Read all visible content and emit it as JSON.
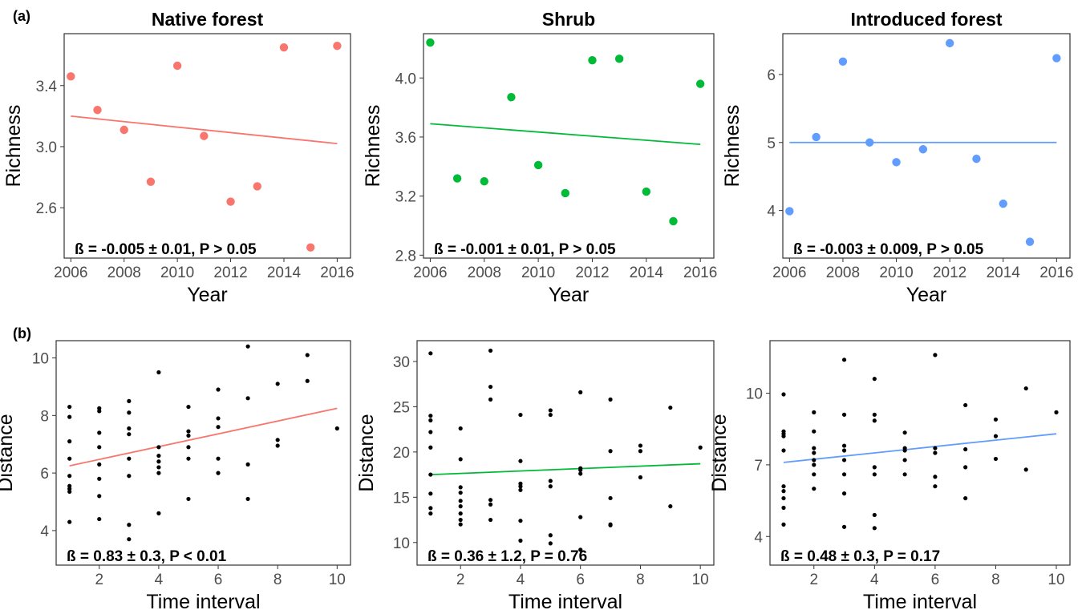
{
  "panel_labels": [
    "(a)",
    "(b)"
  ],
  "column_titles": [
    "Native forest",
    "Shrub",
    "Introduced forest"
  ],
  "chart_data": [
    {
      "type": "scatter",
      "row": "a",
      "title": "Native forest",
      "xlabel": "Year",
      "ylabel": "Richness",
      "xlim": [
        2005.75,
        2016.5
      ],
      "ylim": [
        2.27,
        3.74
      ],
      "xticks": [
        2006,
        2008,
        2010,
        2012,
        2014,
        2016
      ],
      "yticks": [
        2.6,
        3.0,
        3.4
      ],
      "ytick_labels": [
        "2.6",
        "3.0",
        "3.4"
      ],
      "point_color": "#f8766d",
      "point_size": "large",
      "x": [
        2006,
        2007,
        2008,
        2009,
        2010,
        2011,
        2012,
        2013,
        2014,
        2015,
        2016
      ],
      "y": [
        3.46,
        3.24,
        3.11,
        2.77,
        3.53,
        3.07,
        2.64,
        2.74,
        3.65,
        2.34,
        3.66
      ],
      "fit_line": {
        "x": [
          2006,
          2016
        ],
        "y": [
          3.2,
          3.02
        ],
        "color": "#f8766d"
      },
      "annotation": "ß = -0.005 ± 0.01, P > 0.05",
      "grid": false
    },
    {
      "type": "scatter",
      "row": "a",
      "title": "Shrub",
      "xlabel": "Year",
      "ylabel": "Richness",
      "xlim": [
        2005.75,
        2016.5
      ],
      "ylim": [
        2.78,
        4.3
      ],
      "xticks": [
        2006,
        2008,
        2010,
        2012,
        2014,
        2016
      ],
      "yticks": [
        2.8,
        3.2,
        3.6,
        4.0
      ],
      "ytick_labels": [
        "2.8",
        "3.2",
        "3.6",
        "4.0"
      ],
      "point_color": "#00ba38",
      "point_size": "large",
      "x": [
        2006,
        2007,
        2008,
        2009,
        2010,
        2011,
        2012,
        2013,
        2014,
        2015,
        2016
      ],
      "y": [
        4.24,
        3.32,
        3.3,
        3.87,
        3.41,
        3.22,
        4.12,
        4.13,
        3.23,
        3.03,
        3.96
      ],
      "fit_line": {
        "x": [
          2006,
          2016
        ],
        "y": [
          3.69,
          3.55
        ],
        "color": "#00ba38"
      },
      "annotation": "ß = -0.001 ± 0.01, P > 0.05",
      "grid": false
    },
    {
      "type": "scatter",
      "row": "a",
      "title": "Introduced forest",
      "xlabel": "Year",
      "ylabel": "Richness",
      "xlim": [
        2005.75,
        2016.5
      ],
      "ylim": [
        3.3,
        6.6
      ],
      "xticks": [
        2006,
        2008,
        2010,
        2012,
        2014,
        2016
      ],
      "yticks": [
        4,
        5,
        6
      ],
      "ytick_labels": [
        "4",
        "5",
        "6"
      ],
      "point_color": "#619cff",
      "point_size": "large",
      "x": [
        2006,
        2007,
        2008,
        2009,
        2010,
        2011,
        2012,
        2013,
        2014,
        2015,
        2016
      ],
      "y": [
        3.99,
        5.08,
        6.19,
        5.0,
        4.71,
        4.9,
        6.46,
        4.76,
        4.1,
        3.54,
        6.24
      ],
      "fit_line": {
        "x": [
          2006,
          2016
        ],
        "y": [
          5.0,
          5.0
        ],
        "color": "#619cff"
      },
      "annotation": "ß = -0.003 ± 0.009, P > 0.05",
      "grid": false
    },
    {
      "type": "scatter",
      "row": "b",
      "xlabel": "Time interval",
      "ylabel": "Distance",
      "xlim": [
        0.55,
        10.45
      ],
      "ylim": [
        2.8,
        10.6
      ],
      "xticks": [
        2,
        4,
        6,
        8,
        10
      ],
      "yticks": [
        4,
        6,
        8,
        10
      ],
      "ytick_labels": [
        "4",
        "6",
        "8",
        "10"
      ],
      "point_color": "#000000",
      "point_size": "small",
      "x": [
        1,
        1,
        1,
        1,
        1,
        1,
        1,
        1,
        1,
        2,
        2,
        2,
        2,
        2,
        2,
        2,
        2,
        3,
        3,
        3,
        3,
        3,
        3,
        3,
        3,
        4,
        4,
        4,
        4,
        4,
        4,
        4,
        5,
        5,
        5,
        5,
        5,
        5,
        6,
        6,
        6,
        6,
        6,
        7,
        7,
        7,
        7,
        8,
        8,
        8,
        9,
        9,
        10
      ],
      "y": [
        8.3,
        7.95,
        7.1,
        6.5,
        5.9,
        5.55,
        5.45,
        5.35,
        4.3,
        8.25,
        8.15,
        7.4,
        6.9,
        6.3,
        5.8,
        5.2,
        4.4,
        8.5,
        8.1,
        7.55,
        7.35,
        6.5,
        5.9,
        4.2,
        3.7,
        9.5,
        6.9,
        6.6,
        6.4,
        6.2,
        6.0,
        4.6,
        8.3,
        7.45,
        7.3,
        6.9,
        6.5,
        5.1,
        8.9,
        7.9,
        7.6,
        6.5,
        6.0,
        10.4,
        8.6,
        6.3,
        5.1,
        9.1,
        7.15,
        6.95,
        10.1,
        9.2,
        7.55
      ],
      "fit_line": {
        "x": [
          1,
          10
        ],
        "y": [
          6.25,
          8.25
        ],
        "color": "#f8766d"
      },
      "annotation": "ß = 0.83 ± 0.3, P < 0.01",
      "grid": false
    },
    {
      "type": "scatter",
      "row": "b",
      "xlabel": "Time interval",
      "ylabel": "Distance",
      "xlim": [
        0.55,
        10.45
      ],
      "ylim": [
        7.5,
        32.3
      ],
      "xticks": [
        2,
        4,
        6,
        8,
        10
      ],
      "yticks": [
        10,
        15,
        20,
        25,
        30
      ],
      "ytick_labels": [
        "10",
        "15",
        "20",
        "25",
        "30"
      ],
      "point_color": "#000000",
      "point_size": "small",
      "x": [
        1,
        1,
        1,
        1,
        1,
        1,
        1,
        1,
        1,
        2,
        2,
        2,
        2,
        2,
        2,
        2,
        2,
        2,
        3,
        3,
        3,
        3,
        3,
        3,
        4,
        4,
        4,
        4,
        4,
        4,
        4,
        5,
        5,
        5,
        5,
        5,
        5,
        6,
        6,
        6,
        6,
        6,
        6,
        7,
        7,
        7,
        7,
        7,
        8,
        8,
        8,
        9,
        9,
        10
      ],
      "y": [
        30.9,
        24.0,
        23.5,
        22.2,
        20.5,
        17.5,
        15.4,
        13.8,
        13.2,
        22.6,
        19.2,
        16.1,
        15.5,
        14.6,
        14.0,
        13.2,
        12.5,
        12.0,
        31.2,
        27.2,
        25.8,
        14.7,
        14.2,
        12.5,
        24.1,
        19.0,
        16.5,
        16.2,
        15.8,
        12.4,
        10.2,
        24.6,
        24.1,
        16.8,
        16.2,
        10.8,
        9.9,
        26.6,
        18.2,
        18.0,
        17.6,
        12.8,
        9.2,
        25.8,
        20.1,
        14.9,
        12.0,
        11.9,
        20.7,
        20.1,
        17.2,
        24.9,
        14.0,
        20.5
      ],
      "fit_line": {
        "x": [
          1,
          10
        ],
        "y": [
          17.5,
          18.7
        ],
        "color": "#00ba38"
      },
      "annotation": "ß = 0.36 ± 1.2, P = 0.76",
      "grid": false
    },
    {
      "type": "scatter",
      "row": "b",
      "xlabel": "Time interval",
      "ylabel": "Distance",
      "xlim": [
        0.55,
        10.45
      ],
      "ylim": [
        2.8,
        12.2
      ],
      "xticks": [
        2,
        4,
        6,
        8,
        10
      ],
      "yticks": [
        4,
        7,
        10
      ],
      "ytick_labels": [
        "4",
        "7",
        "10"
      ],
      "point_color": "#000000",
      "point_size": "small",
      "x": [
        1,
        1,
        1,
        1,
        1,
        1,
        1,
        1,
        1,
        1,
        2,
        2,
        2,
        2,
        2,
        2,
        2,
        2,
        3,
        3,
        3,
        3,
        3,
        3,
        3,
        3,
        4,
        4,
        4,
        4,
        4,
        4,
        4,
        5,
        5,
        5,
        5,
        5,
        6,
        6,
        6,
        6,
        6,
        7,
        7,
        7,
        7,
        8,
        8,
        8,
        9,
        9,
        10
      ],
      "y": [
        9.95,
        8.4,
        8.3,
        8.2,
        7.6,
        6.1,
        5.9,
        5.6,
        5.2,
        4.5,
        9.2,
        8.4,
        7.7,
        7.5,
        7.2,
        7.0,
        6.6,
        6.0,
        11.4,
        9.1,
        7.8,
        7.6,
        7.2,
        6.6,
        5.8,
        4.4,
        10.6,
        9.1,
        8.85,
        6.9,
        6.6,
        4.9,
        4.35,
        8.35,
        7.7,
        7.6,
        7.2,
        6.6,
        11.6,
        7.7,
        7.5,
        6.5,
        6.1,
        9.5,
        7.65,
        6.9,
        5.6,
        8.9,
        8.2,
        7.25,
        10.2,
        6.8,
        9.2
      ],
      "fit_line": {
        "x": [
          1,
          10
        ],
        "y": [
          7.1,
          8.3
        ],
        "color": "#619cff"
      },
      "annotation": "ß = 0.48 ± 0.3, P = 0.17",
      "grid": false
    }
  ]
}
